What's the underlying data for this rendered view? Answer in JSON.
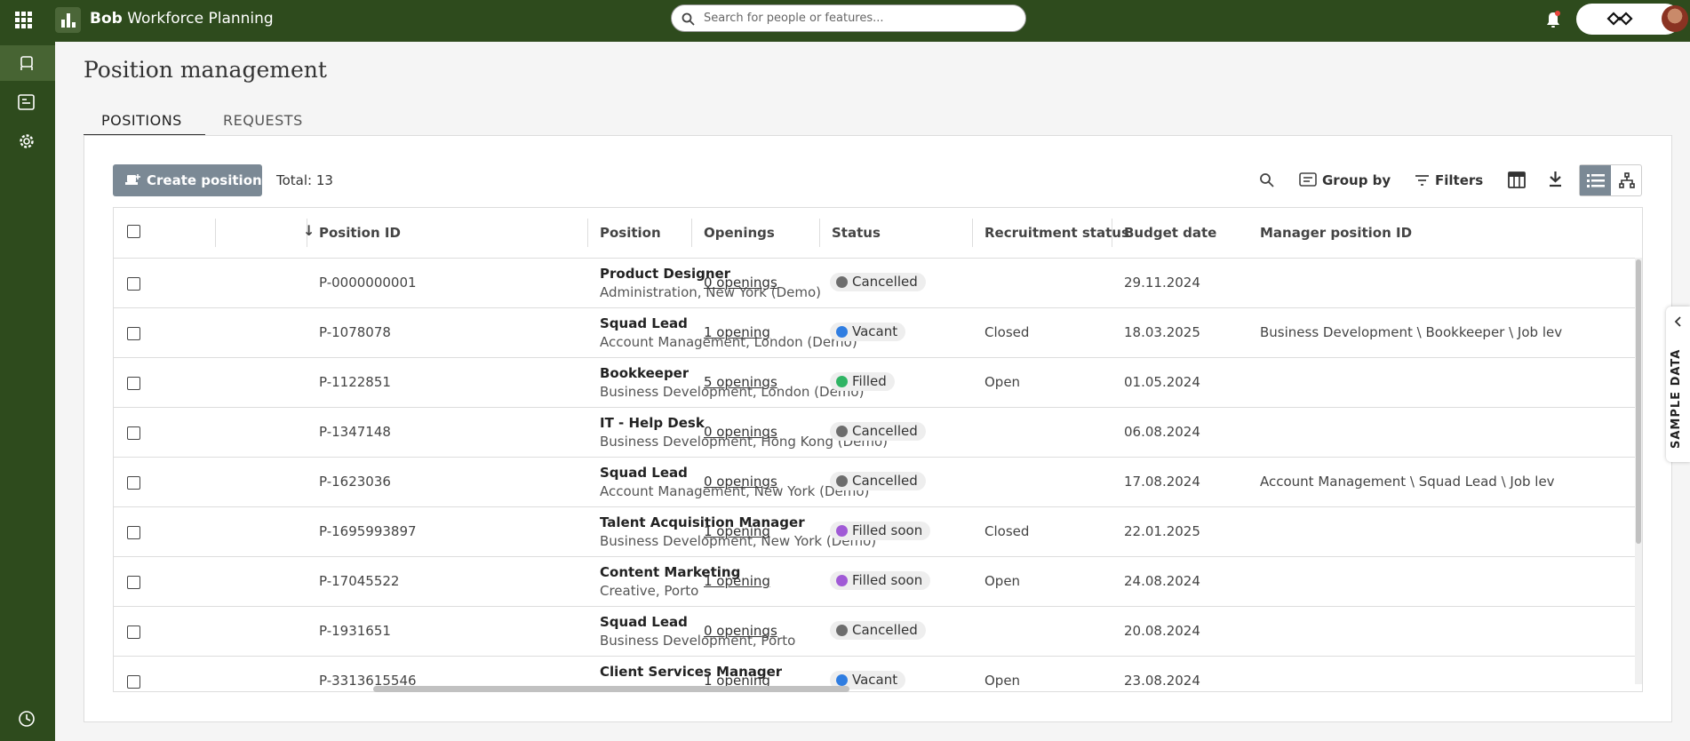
{
  "header": {
    "brand": "Bob",
    "product": "Workforce Planning",
    "search_placeholder": "Search for people or features..."
  },
  "page": {
    "title": "Position management",
    "tabs": [
      "POSITIONS",
      "REQUESTS"
    ]
  },
  "toolbar": {
    "create": "Create position",
    "total": "Total: 13",
    "group_by": "Group by",
    "filters": "Filters"
  },
  "table": {
    "columns": [
      "Position ID",
      "Position",
      "Openings",
      "Status",
      "Recruitment status",
      "Budget date",
      "Manager position ID"
    ],
    "rows": [
      {
        "id": "P-0000000001",
        "title": "Product Designer",
        "subtitle": "Administration, New York (Demo)",
        "openings": "0 openings",
        "status": {
          "label": "Cancelled",
          "color": "#6d6d6d"
        },
        "recruitment": "",
        "budget_date": "29.11.2024",
        "manager": ""
      },
      {
        "id": "P-1078078",
        "title": "Squad Lead",
        "subtitle": "Account Management, London (Demo)",
        "openings": "1 opening",
        "status": {
          "label": "Vacant",
          "color": "#2f7de1"
        },
        "recruitment": "Closed",
        "budget_date": "18.03.2025",
        "manager": "Business Development \\ Bookkeeper \\ Job lev"
      },
      {
        "id": "P-1122851",
        "title": "Bookkeeper",
        "subtitle": "Business Development, London (Demo)",
        "openings": "5 openings",
        "status": {
          "label": "Filled",
          "color": "#2fb464"
        },
        "recruitment": "Open",
        "budget_date": "01.05.2024",
        "manager": ""
      },
      {
        "id": "P-1347148",
        "title": "IT - Help Desk",
        "subtitle": "Business Development, Hong Kong (Demo)",
        "openings": "0 openings",
        "status": {
          "label": "Cancelled",
          "color": "#6d6d6d"
        },
        "recruitment": "",
        "budget_date": "06.08.2024",
        "manager": ""
      },
      {
        "id": "P-1623036",
        "title": "Squad Lead",
        "subtitle": "Account Management, New York (Demo)",
        "openings": "0 openings",
        "status": {
          "label": "Cancelled",
          "color": "#6d6d6d"
        },
        "recruitment": "",
        "budget_date": "17.08.2024",
        "manager": "Account Management \\ Squad Lead \\ Job lev"
      },
      {
        "id": "P-1695993897",
        "title": "Talent Acquisition Manager",
        "subtitle": "Business Development, New York (Demo)",
        "openings": "1 opening",
        "status": {
          "label": "Filled soon",
          "color": "#a05ad6"
        },
        "recruitment": "Closed",
        "budget_date": "22.01.2025",
        "manager": ""
      },
      {
        "id": "P-17045522",
        "title": "Content Marketing",
        "subtitle": "Creative, Porto",
        "openings": "1 opening",
        "status": {
          "label": "Filled soon",
          "color": "#a05ad6"
        },
        "recruitment": "Open",
        "budget_date": "24.08.2024",
        "manager": ""
      },
      {
        "id": "P-1931651",
        "title": "Squad Lead",
        "subtitle": "Business Development, Porto",
        "openings": "0 openings",
        "status": {
          "label": "Cancelled",
          "color": "#6d6d6d"
        },
        "recruitment": "",
        "budget_date": "20.08.2024",
        "manager": ""
      },
      {
        "id": "P-3313615546",
        "title": "Client Services Manager",
        "openings": "1 opening",
        "status": {
          "label": "Vacant",
          "color": "#2f7de1"
        },
        "recruitment": "Open",
        "budget_date": "23.08.2024",
        "manager": ""
      }
    ]
  },
  "side_tab": "SAMPLE DATA"
}
